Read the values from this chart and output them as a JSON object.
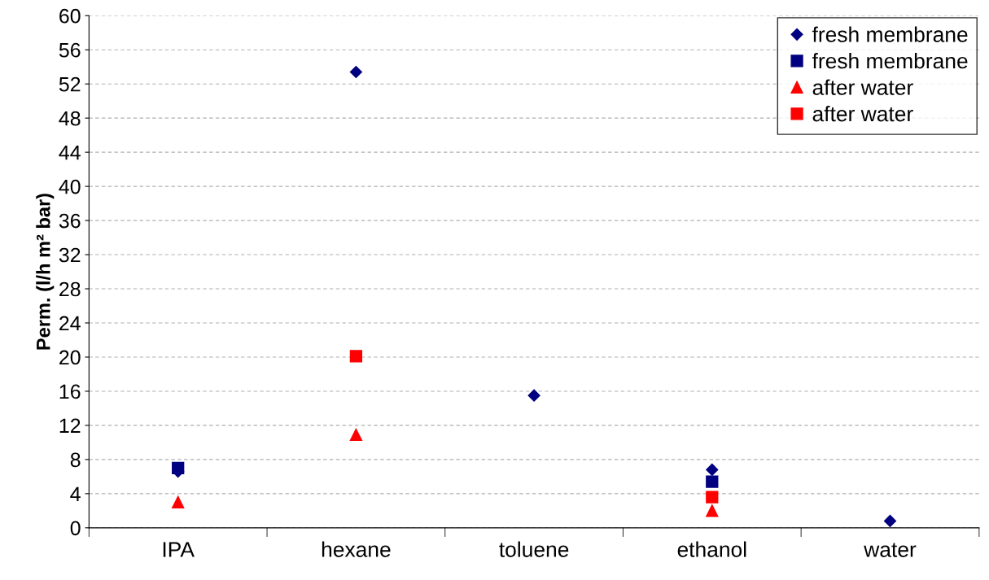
{
  "chart_data": {
    "type": "scatter",
    "ylabel": "Perm. (l/h m² bar)",
    "categories": [
      "IPA",
      "hexane",
      "toluene",
      "ethanol",
      "water"
    ],
    "series": [
      {
        "name": "fresh membrane",
        "color": "#000080",
        "marker": "diamond",
        "values": [
          6.6,
          53.4,
          15.5,
          6.8,
          0.8
        ]
      },
      {
        "name": "fresh membrane",
        "color": "#000080",
        "marker": "square",
        "values": [
          7.0,
          null,
          null,
          5.4,
          null
        ]
      },
      {
        "name": "after water",
        "color": "#ff0000",
        "marker": "triangle",
        "values": [
          3.0,
          10.9,
          null,
          2.0,
          null
        ]
      },
      {
        "name": "after water",
        "color": "#ff0000",
        "marker": "square",
        "values": [
          null,
          20.1,
          null,
          3.6,
          null
        ]
      }
    ],
    "ylim": [
      0,
      60
    ],
    "yticks": [
      0,
      4,
      8,
      12,
      16,
      20,
      24,
      28,
      32,
      36,
      40,
      44,
      48,
      52,
      56,
      60
    ],
    "grid": "y",
    "legend": "top right"
  }
}
